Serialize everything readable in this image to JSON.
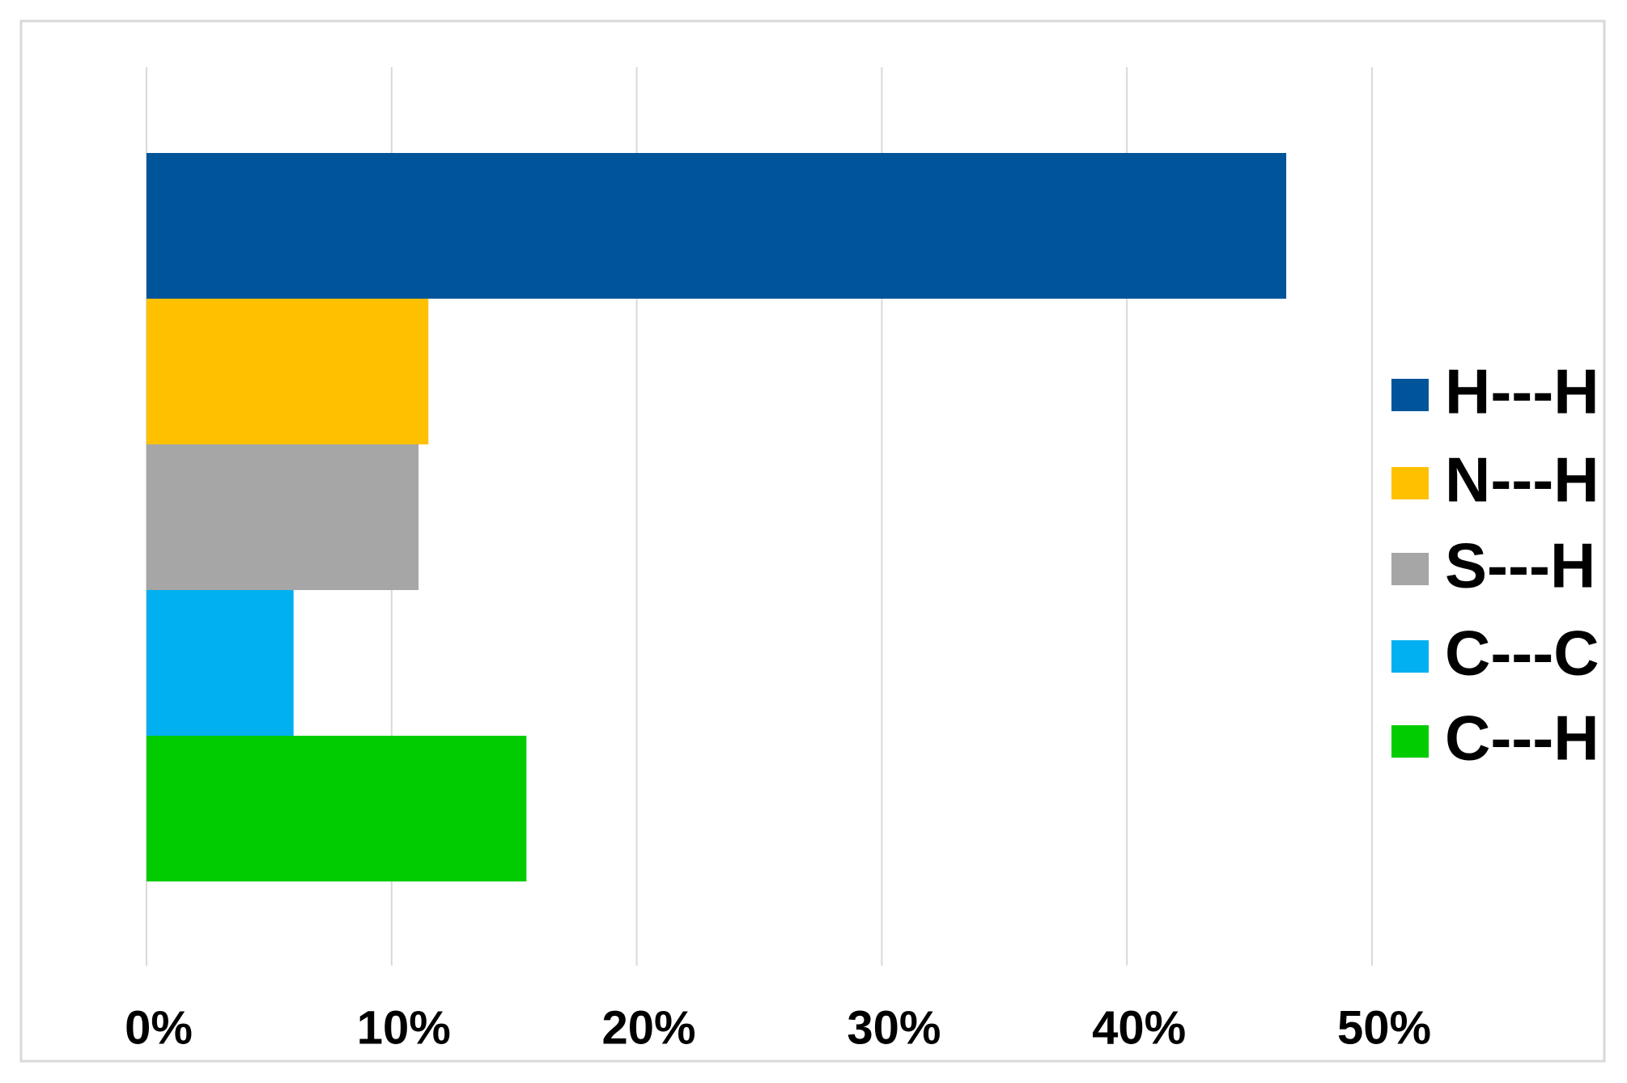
{
  "chart_data": {
    "type": "hbar",
    "categories": [
      null
    ],
    "series": [
      {
        "name": "H---H",
        "color": "#00549a",
        "values": [
          46.5
        ]
      },
      {
        "name": "N---H",
        "color": "#ffc000",
        "values": [
          11.5
        ]
      },
      {
        "name": "S---H",
        "color": "#a6a6a6",
        "values": [
          11.1
        ]
      },
      {
        "name": "C---C",
        "color": "#00b0f0",
        "values": [
          6.0
        ]
      },
      {
        "name": "C---H",
        "color": "#00cc00",
        "values": [
          15.5
        ]
      }
    ],
    "xlim": [
      0,
      50
    ],
    "xticks": [
      {
        "value": 0,
        "label": "0%"
      },
      {
        "value": 10,
        "label": "10%"
      },
      {
        "value": 20,
        "label": "20%"
      },
      {
        "value": 30,
        "label": "30%"
      },
      {
        "value": 40,
        "label": "40%"
      },
      {
        "value": 50,
        "label": "50%"
      }
    ],
    "grid": true,
    "legend": "right"
  }
}
